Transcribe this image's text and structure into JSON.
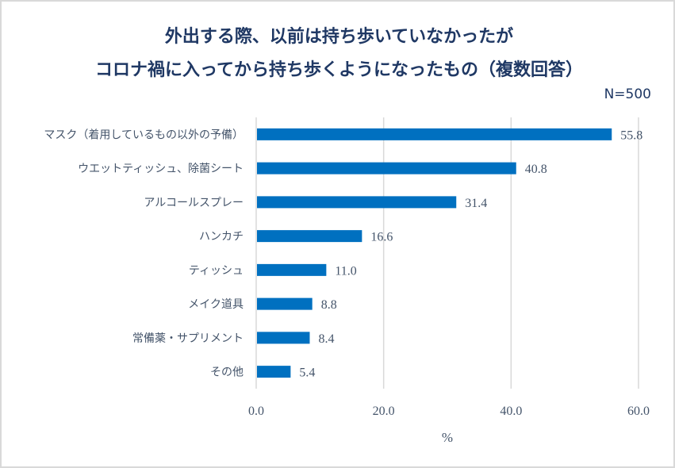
{
  "chart_data": {
    "type": "bar",
    "orientation": "horizontal",
    "title": "外出する際、以前は持ち歩いていなかったが コロナ禍に入ってから持ち歩くようになったもの（複数回答）",
    "title_lines": [
      "外出する際、以前は持ち歩いていなかったが",
      "コロナ禍に入ってから持ち歩くようになったもの（複数回答）"
    ],
    "annotation": "N=500",
    "categories": [
      "マスク（着用しているもの以外の予備）",
      "ウエットティッシュ、除菌シート",
      "アルコールスプレー",
      "ハンカチ",
      "ティッシュ",
      "メイク道具",
      "常備薬・サプリメント",
      "その他"
    ],
    "values": [
      55.8,
      40.8,
      31.4,
      16.6,
      11.0,
      8.8,
      8.4,
      5.4
    ],
    "value_labels": [
      "55.8",
      "40.8",
      "31.4",
      "16.6",
      "11.0",
      "8.8",
      "8.4",
      "5.4"
    ],
    "xlabel": "%",
    "ylabel": "",
    "xlim": [
      0,
      60
    ],
    "xticks": [
      0,
      20,
      40,
      60
    ],
    "xtick_labels": [
      "0.0",
      "20.0",
      "40.0",
      "60.0"
    ],
    "grid": true,
    "legend": "none",
    "colors": {
      "bar": "#0070c0",
      "title": "#1f3864",
      "text": "#44546a",
      "grid": "#d9d9d9"
    }
  }
}
